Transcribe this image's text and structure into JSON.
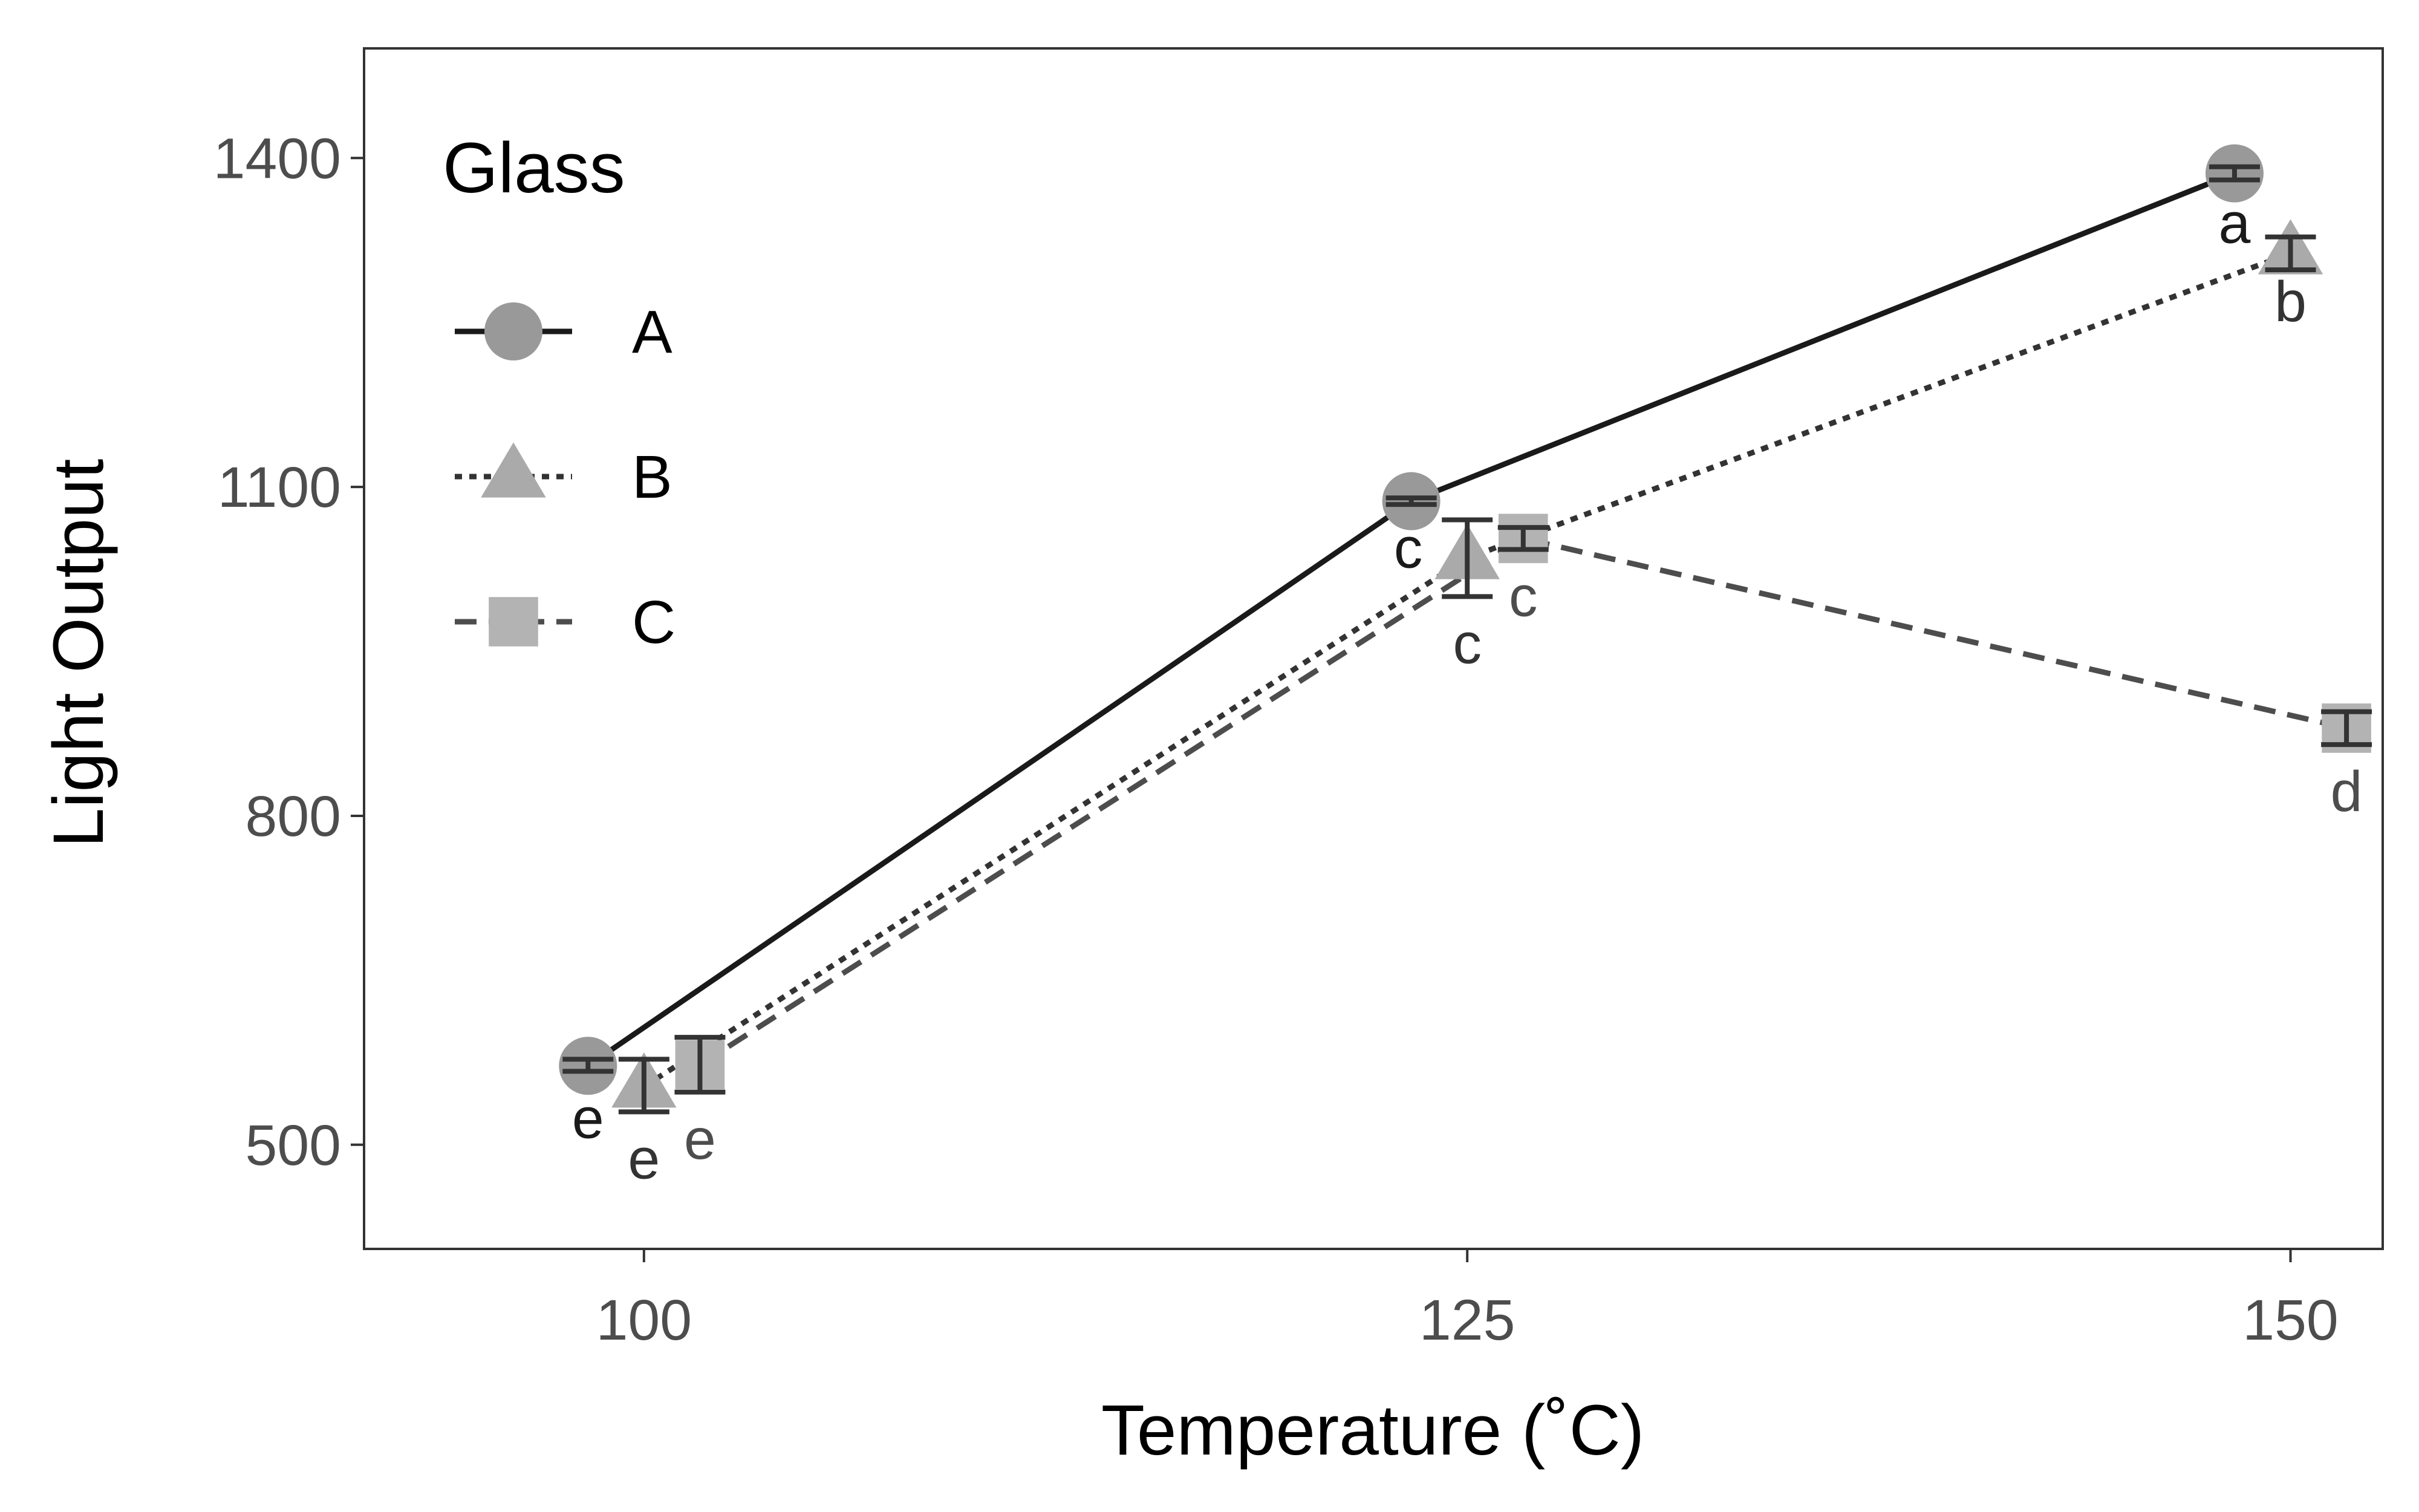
{
  "chart_data": {
    "type": "line",
    "xlabel": "Temperature (˚C)",
    "ylabel": "Light Output",
    "x": [
      100,
      125,
      150
    ],
    "x_ticks": [
      "100",
      "125",
      "150"
    ],
    "y_ticks": [
      "500",
      "800",
      "1100",
      "1400"
    ],
    "xlim": [
      91.5,
      152.8
    ],
    "ylim": [
      405,
      1500
    ],
    "grid": false,
    "legend": {
      "title": "Glass",
      "placement": "top-left"
    },
    "series": [
      {
        "name": "A",
        "marker": "circle",
        "line_style": "solid",
        "color": "#1a1a1a",
        "marker_color": "#999999",
        "means": [
          572,
          1087,
          1386
        ],
        "error_low": [
          567,
          1084,
          1380
        ],
        "error_high": [
          578,
          1090,
          1392
        ],
        "letters": [
          "e",
          "c",
          "a"
        ]
      },
      {
        "name": "B",
        "marker": "triangle",
        "line_style": "dotted",
        "color": "#333333",
        "marker_color": "#aaaaaa",
        "means": [
          553,
          1035,
          1313
        ],
        "error_low": [
          530,
          1000,
          1298
        ],
        "error_high": [
          578,
          1070,
          1328
        ],
        "letters": [
          "e",
          "c",
          "b"
        ]
      },
      {
        "name": "C",
        "marker": "square",
        "line_style": "dashed",
        "color": "#4d4d4d",
        "marker_color": "#b3b3b3",
        "means": [
          573,
          1053,
          880
        ],
        "error_low": [
          548,
          1043,
          865
        ],
        "error_high": [
          598,
          1063,
          895
        ],
        "letters": [
          "e",
          "c",
          "d"
        ]
      }
    ]
  }
}
